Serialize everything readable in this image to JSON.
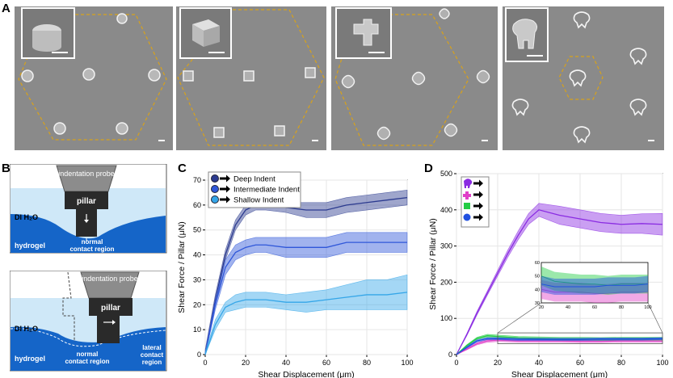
{
  "figure": {
    "panels": {
      "A": {
        "label": "A"
      },
      "B": {
        "label": "B",
        "top": {
          "probe": "indentation probe",
          "pillar": "pillar",
          "medium": "DI H₂O",
          "substrate": "hydrogel",
          "region1": "normal",
          "region2": "contact region"
        },
        "bottom": {
          "probe": "indentation probe",
          "pillar": "pillar",
          "medium": "DI H₂O",
          "substrate": "hydrogel",
          "normal1": "normal",
          "normal2": "contact region",
          "lateral1": "lateral",
          "lateral2": "contact",
          "lateral3": "region"
        }
      },
      "C": {
        "label": "C"
      },
      "D": {
        "label": "D"
      }
    }
  },
  "colors": {
    "deep": "#2b3a8f",
    "intermediate": "#2f57d9",
    "shallow": "#35a6e8",
    "purple": "#8a2be2",
    "magenta": "#e040c8",
    "green": "#22cc44",
    "blue": "#2050e0",
    "dashed": "#d8a21a"
  },
  "chart_data": [
    {
      "type": "line",
      "panel": "C",
      "title": "",
      "xlabel": "Shear Displacement (μm)",
      "ylabel": "Shear Force / Pillar (μN)",
      "xlim": [
        0,
        100
      ],
      "ylim": [
        0,
        70
      ],
      "xticks": [
        0,
        20,
        40,
        60,
        80,
        100
      ],
      "yticks": [
        0,
        10,
        20,
        30,
        40,
        50,
        60,
        70
      ],
      "legend_position": "top-left",
      "series": [
        {
          "name": "Deep Indent",
          "color": "#2b3a8f",
          "x": [
            0,
            5,
            10,
            15,
            20,
            25,
            30,
            40,
            50,
            60,
            70,
            80,
            90,
            100
          ],
          "y": [
            0,
            22,
            40,
            52,
            58,
            60,
            60,
            59,
            58,
            58,
            60,
            61,
            62,
            63
          ],
          "band": [
            2,
            2,
            2,
            2,
            2,
            2,
            2,
            2,
            3,
            3,
            3,
            3,
            3,
            3
          ]
        },
        {
          "name": "Intermediate Indent",
          "color": "#2f57d9",
          "x": [
            0,
            5,
            10,
            15,
            20,
            25,
            30,
            40,
            50,
            60,
            70,
            80,
            90,
            100
          ],
          "y": [
            0,
            20,
            35,
            41,
            43,
            44,
            44,
            43,
            43,
            43,
            45,
            45,
            45,
            45
          ],
          "band": [
            1,
            2,
            3,
            3,
            3,
            3,
            3,
            4,
            4,
            4,
            4,
            4,
            4,
            4
          ]
        },
        {
          "name": "Shallow Indent",
          "color": "#35a6e8",
          "x": [
            0,
            5,
            10,
            15,
            20,
            25,
            30,
            40,
            50,
            60,
            70,
            80,
            90,
            100
          ],
          "y": [
            0,
            12,
            19,
            21,
            22,
            22,
            22,
            21,
            21,
            22,
            23,
            24,
            24,
            25
          ],
          "band": [
            1,
            2,
            2,
            3,
            3,
            3,
            3,
            3,
            4,
            4,
            5,
            6,
            6,
            7
          ]
        }
      ]
    },
    {
      "type": "line",
      "panel": "D",
      "title": "",
      "xlabel": "Shear Displacement (μm)",
      "ylabel": "Shear Force / Pillar (μN)",
      "xlim": [
        0,
        100
      ],
      "ylim": [
        0,
        500
      ],
      "xticks": [
        0,
        20,
        40,
        60,
        80,
        100
      ],
      "yticks": [
        0,
        100,
        200,
        300,
        400,
        500
      ],
      "legend_position": "top-left",
      "legend_entries": [
        "elephant",
        "flower",
        "square",
        "circle"
      ],
      "series": [
        {
          "name": "elephant",
          "color": "#8a2be2",
          "x": [
            0,
            5,
            10,
            15,
            20,
            25,
            30,
            35,
            40,
            50,
            60,
            70,
            80,
            90,
            100
          ],
          "y": [
            0,
            55,
            115,
            170,
            225,
            280,
            330,
            375,
            400,
            385,
            375,
            365,
            360,
            362,
            360
          ],
          "band": [
            0,
            3,
            5,
            6,
            8,
            10,
            12,
            15,
            18,
            25,
            25,
            25,
            25,
            27,
            30
          ]
        },
        {
          "name": "flower",
          "color": "#e040c8",
          "x": [
            0,
            5,
            10,
            15,
            20,
            30,
            40,
            50,
            60,
            70,
            80,
            90,
            100
          ],
          "y": [
            0,
            15,
            30,
            38,
            40,
            38,
            38,
            38,
            37,
            37,
            38,
            38,
            38
          ],
          "band": [
            0,
            2,
            3,
            4,
            4,
            4,
            4,
            4,
            4,
            4,
            4,
            4,
            4
          ]
        },
        {
          "name": "square",
          "color": "#22cc44",
          "x": [
            0,
            5,
            10,
            15,
            20,
            30,
            40,
            50,
            60,
            70,
            80,
            90,
            100
          ],
          "y": [
            0,
            25,
            45,
            52,
            50,
            46,
            45,
            44,
            44,
            43,
            44,
            44,
            44
          ],
          "band": [
            0,
            2,
            3,
            4,
            4,
            4,
            4,
            4,
            4,
            4,
            4,
            4,
            4
          ]
        },
        {
          "name": "circle",
          "color": "#2050e0",
          "x": [
            0,
            5,
            10,
            15,
            20,
            30,
            40,
            50,
            60,
            70,
            80,
            90,
            100
          ],
          "y": [
            0,
            20,
            38,
            44,
            44,
            42,
            42,
            42,
            42,
            43,
            43,
            43,
            44
          ],
          "band": [
            0,
            2,
            3,
            3,
            3,
            3,
            3,
            3,
            3,
            3,
            3,
            3,
            3
          ]
        }
      ],
      "inset": {
        "xlim": [
          20,
          100
        ],
        "ylim": [
          30,
          60
        ],
        "xticks": [
          20,
          40,
          60,
          80,
          100
        ],
        "yticks": [
          30,
          40,
          50,
          60
        ]
      }
    }
  ]
}
